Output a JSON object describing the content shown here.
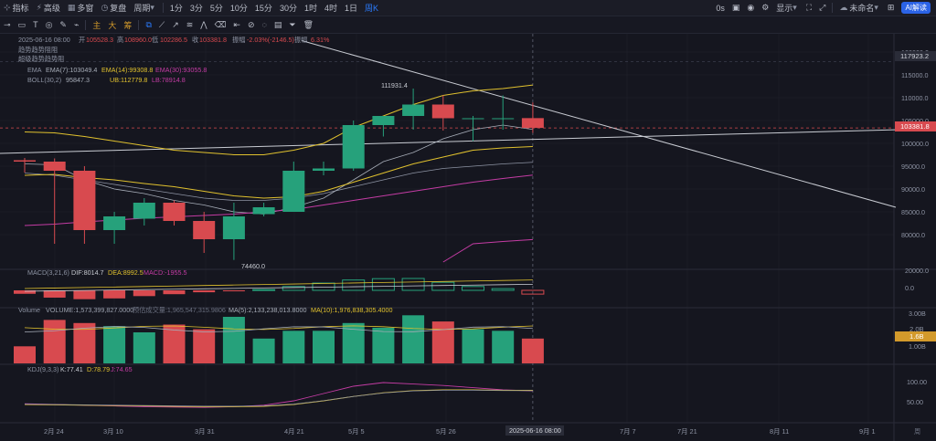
{
  "toolbar": {
    "left": [
      {
        "icon": "crosshair-icon",
        "label": "指标"
      },
      {
        "icon": "lightning-icon",
        "label": "高级"
      },
      {
        "icon": "grid-icon",
        "label": "多窗"
      },
      {
        "icon": "replay-icon",
        "label": "复盘"
      },
      {
        "icon": "",
        "label": "周期"
      }
    ],
    "periods": [
      "1分",
      "3分",
      "5分",
      "10分",
      "15分",
      "30分",
      "1时",
      "4时",
      "1日",
      "周K"
    ],
    "active_period": "周K",
    "right": {
      "zero_s": "0s",
      "show": "显示",
      "unnamed": "未命名",
      "ai": "AI解读"
    }
  },
  "draw_tools": {
    "indicator_glyphs": [
      "主",
      "大",
      "筹"
    ]
  },
  "legend": {
    "ohlc_row": {
      "date": "2025-06-16 08:00",
      "open_label": "开",
      "open": "105528.3",
      "high_label": "高",
      "high": "108960.0",
      "low_label": "低",
      "low": "102286.5",
      "close_label": "收",
      "close": "103381.8",
      "change_label": "振幅",
      "change": "-2.03%(-2146.5)",
      "amp_label": "振幅",
      "amp": "6.31%"
    },
    "sub1": "趋势趋势阻阻",
    "sub2": "超级趋势趋势阻",
    "ema": {
      "label": "EMA",
      "e7": "EMA(7):103049.4",
      "e14": "EMA(14):99308.8",
      "e30": "EMA(30):93055.8"
    },
    "boll": {
      "label": "BOLL(30,2)",
      "mid": "95847.3",
      "ub": "UB:112779.8",
      "lb": "LB:78914.8"
    },
    "macd": {
      "label": "MACD(3,21,6)",
      "dif": "DIF:8014.7",
      "dea": "DEA:8992.5",
      "macd": "MACD:-1955.5"
    },
    "volume": {
      "label": "Volume",
      "vol": "VOLUME:1,573,399,827.0000",
      "pred": "预估成交量:1,965,547,315.9806",
      "ma5": "MA(5):2,133,238,013.8000",
      "ma10": "MA(10):1,976,838,305.4000"
    },
    "kdj": {
      "label": "KDJ(9,3,3)",
      "k": "K:77.41",
      "d": "D:78.79",
      "j": "J:74.65"
    }
  },
  "price_labels": {
    "current": "103381.8",
    "line": "117923.2",
    "hi": "111931.4",
    "lo": "74460.0",
    "vol_current": "1.6B",
    "vol_tag": "2.0B"
  },
  "axis_labels": {
    "x": [
      "2月 24",
      "3月 10",
      "3月 31",
      "4月 21",
      "5月 5",
      "5月 26",
      "7月 7",
      "7月 21",
      "8月 11",
      "9月 1"
    ],
    "crosshair_date": "2025-06-16 08:00",
    "corner": "周",
    "price_ticks": [
      "120000.0",
      "115000.0",
      "110000.0",
      "105000.0",
      "100000.0",
      "95000.0",
      "90000.0",
      "85000.0",
      "80000.0"
    ],
    "macd_ticks": [
      "20000.0",
      "0.0"
    ],
    "vol_ticks": [
      "3.00B",
      "1.00B"
    ],
    "kdj_ticks": [
      "100.00",
      "50.00"
    ]
  },
  "colors": {
    "up": "#26a17b",
    "down": "#d84a4f",
    "bg": "#15161f",
    "grid": "#20222c",
    "ema7": "#a7adb8",
    "ema14": "#e0c12e",
    "ema30": "#c8cbd2",
    "boll_up": "#e0c12e",
    "boll_mid": "#a7adb8",
    "boll_lb": "#c43ca4",
    "trend": "#c9ccd3",
    "accent": "#2b7cff",
    "current_tag": "#d84a4f",
    "vol_tag": "#d39a2b"
  },
  "chart_data": {
    "type": "candlestick",
    "candles": [
      {
        "o": 96300,
        "h": 96800,
        "l": 93600,
        "c": 96000
      },
      {
        "o": 96000,
        "h": 96700,
        "l": 78000,
        "c": 94000
      },
      {
        "o": 94000,
        "h": 95000,
        "l": 78000,
        "c": 81000
      },
      {
        "o": 81000,
        "h": 85000,
        "l": 78000,
        "c": 84000
      },
      {
        "o": 83500,
        "h": 88000,
        "l": 82000,
        "c": 87000
      },
      {
        "o": 87000,
        "h": 87500,
        "l": 82000,
        "c": 83000
      },
      {
        "o": 83000,
        "h": 85000,
        "l": 76000,
        "c": 79000
      },
      {
        "o": 79000,
        "h": 87000,
        "l": 74460,
        "c": 84000
      },
      {
        "o": 84500,
        "h": 87000,
        "l": 84000,
        "c": 86000
      },
      {
        "o": 85000,
        "h": 96000,
        "l": 85000,
        "c": 94000
      },
      {
        "o": 94000,
        "h": 96000,
        "l": 93000,
        "c": 94500
      },
      {
        "o": 94500,
        "h": 105000,
        "l": 94000,
        "c": 104000
      },
      {
        "o": 104000,
        "h": 106000,
        "l": 101500,
        "c": 106000
      },
      {
        "o": 106000,
        "h": 112000,
        "l": 103000,
        "c": 108500
      },
      {
        "o": 108500,
        "h": 110500,
        "l": 102800,
        "c": 105500
      },
      {
        "o": 105500,
        "h": 106000,
        "l": 100500,
        "c": 105500
      },
      {
        "o": 105500,
        "h": 110500,
        "l": 103000,
        "c": 105500
      },
      {
        "o": 105528,
        "h": 108960,
        "l": 102286,
        "c": 103382
      }
    ],
    "ema7": [
      95500,
      95300,
      92000,
      90000,
      89000,
      87500,
      86500,
      85000,
      84500,
      86000,
      88000,
      92000,
      96000,
      98000,
      101000,
      103000,
      104000,
      103049
    ],
    "ema14": [
      93000,
      93200,
      92500,
      92000,
      91200,
      90500,
      89500,
      88500,
      88000,
      88300,
      89500,
      91500,
      93500,
      95500,
      97000,
      98500,
      99000,
      99309
    ],
    "ema30": [
      82000,
      82300,
      82800,
      83200,
      83600,
      83900,
      84200,
      84500,
      85000,
      85500,
      86500,
      87500,
      88500,
      89500,
      90500,
      91500,
      92300,
      93056
    ],
    "boll_ub": [
      102500,
      102300,
      101500,
      100500,
      99500,
      98500,
      98000,
      97500,
      97500,
      98500,
      100000,
      103500,
      106000,
      108500,
      110500,
      111500,
      112000,
      112780
    ],
    "boll_mid": [
      93500,
      93000,
      92000,
      91000,
      90000,
      89000,
      88000,
      87500,
      87500,
      88000,
      89000,
      90500,
      92000,
      93500,
      94500,
      95000,
      95500,
      95847
    ],
    "boll_lb": [
      null,
      null,
      null,
      null,
      null,
      null,
      null,
      null,
      null,
      null,
      null,
      null,
      null,
      null,
      74000,
      78000,
      78500,
      78915
    ],
    "macd_hist": [
      -1800,
      -3800,
      -4600,
      -4200,
      -3000,
      -2000,
      -1000,
      -500,
      400,
      2000,
      3800,
      5400,
      6100,
      6200,
      4200,
      2000,
      900,
      -1955
    ],
    "volume": [
      1.1,
      2.8,
      2.6,
      2.4,
      2.0,
      2.5,
      2.2,
      3.0,
      1.6,
      2.1,
      2.1,
      2.6,
      2.3,
      3.1,
      2.7,
      2.2,
      2.1,
      1.6
    ],
    "kdj_k": [
      42,
      40,
      38,
      36,
      34,
      33,
      32,
      34,
      38,
      50,
      70,
      90,
      100,
      96,
      92,
      86,
      80,
      77.41
    ],
    "kdj_d": [
      40,
      39,
      38,
      37,
      36,
      35,
      34,
      34,
      35,
      40,
      50,
      62,
      72,
      78,
      80,
      80,
      79,
      78.79
    ],
    "x_labels": [
      "2月 24",
      "3月 10",
      "3月 31",
      "4月 21",
      "5月 5",
      "5月 26",
      "7月 7",
      "7月 21",
      "8月 11",
      "9月 1"
    ],
    "y_range": [
      73000,
      122000
    ]
  }
}
